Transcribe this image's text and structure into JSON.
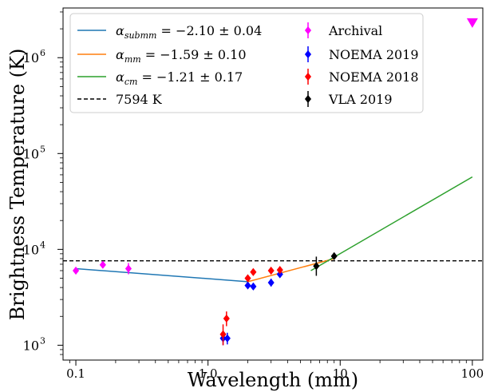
{
  "chart_data": {
    "type": "scatter",
    "xlabel": "Wavelength (mm)",
    "ylabel": "Brightness Temperature (K)",
    "xscale": "log",
    "yscale": "log",
    "xlim": [
      0.08,
      120
    ],
    "ylim": [
      700,
      3300000
    ],
    "x_ticks": [
      {
        "value": 0.1,
        "label": "0.1"
      },
      {
        "value": 1,
        "label": "1.0"
      },
      {
        "value": 10,
        "label": "10"
      },
      {
        "value": 100,
        "label": "100"
      }
    ],
    "y_ticks": [
      {
        "value": 1000,
        "base": "10",
        "exp": "3"
      },
      {
        "value": 10000,
        "base": "10",
        "exp": "4"
      },
      {
        "value": 100000,
        "base": "10",
        "exp": "5"
      },
      {
        "value": 1000000,
        "base": "10",
        "exp": "6"
      }
    ],
    "legend_position": "top",
    "fits": [
      {
        "name": "α_submm = −2.10 ± 0.04",
        "label_prefix": "α",
        "label_sub": "submm",
        "label_rest": " = −2.10 ± 0.04",
        "color": "#1f77b4",
        "x": [
          0.1,
          2.0
        ],
        "y": [
          6300,
          4600
        ]
      },
      {
        "name": "α_mm = −1.59 ± 0.10",
        "label_prefix": "α",
        "label_sub": "mm",
        "label_rest": " = −1.59 ± 0.10",
        "color": "#ff7f0e",
        "x": [
          2.0,
          9.0
        ],
        "y": [
          4600,
          8000
        ]
      },
      {
        "name": "α_cm = −1.21 ± 0.17",
        "label_prefix": "α",
        "label_sub": "cm",
        "label_rest": " = −1.21 ± 0.17",
        "color": "#2ca02c",
        "x": [
          6.0,
          100
        ],
        "y": [
          6000,
          57000
        ]
      }
    ],
    "hline": {
      "name": "7594 K",
      "value": 7594,
      "color": "#000000",
      "style": "dashed"
    },
    "series": [
      {
        "name": "Archival",
        "color": "#ff00ff",
        "points": [
          {
            "x": 0.1,
            "y": 6000,
            "ylo": 5750,
            "yhi": 6250
          },
          {
            "x": 0.16,
            "y": 6900,
            "ylo": 6500,
            "yhi": 7300
          },
          {
            "x": 0.25,
            "y": 6300,
            "ylo": 5500,
            "yhi": 7200
          }
        ]
      },
      {
        "name": "NOEMA 2019",
        "color": "#0000ff",
        "points": [
          {
            "x": 1.3,
            "y": 1180,
            "ylo": 1000,
            "yhi": 1380
          },
          {
            "x": 1.4,
            "y": 1180,
            "ylo": 1020,
            "yhi": 1350
          },
          {
            "x": 2.0,
            "y": 4200,
            "ylo": 3900,
            "yhi": 4500
          },
          {
            "x": 2.2,
            "y": 4100,
            "ylo": 3850,
            "yhi": 4350
          },
          {
            "x": 3.0,
            "y": 4500,
            "ylo": 4100,
            "yhi": 4950
          },
          {
            "x": 3.5,
            "y": 5500,
            "ylo": 5100,
            "yhi": 6000
          }
        ]
      },
      {
        "name": "NOEMA 2018",
        "color": "#ff0000",
        "points": [
          {
            "x": 1.3,
            "y": 1300,
            "ylo": 1000,
            "yhi": 1650
          },
          {
            "x": 1.38,
            "y": 1900,
            "ylo": 1580,
            "yhi": 2250
          },
          {
            "x": 2.0,
            "y": 5000,
            "ylo": 4600,
            "yhi": 5400
          },
          {
            "x": 2.2,
            "y": 5800,
            "ylo": 5500,
            "yhi": 6100
          },
          {
            "x": 3.0,
            "y": 6000,
            "ylo": 5700,
            "yhi": 6300
          },
          {
            "x": 3.5,
            "y": 6100,
            "ylo": 5750,
            "yhi": 6450
          }
        ]
      },
      {
        "name": "VLA 2019",
        "color": "#000000",
        "points": [
          {
            "x": 6.6,
            "y": 6700,
            "ylo": 5300,
            "yhi": 8400
          },
          {
            "x": 9.0,
            "y": 8500,
            "ylo": 8100,
            "yhi": 8900
          }
        ]
      }
    ],
    "upper_limit": {
      "x": 100,
      "y": 2300000,
      "color": "#ff00ff",
      "marker": "triangle-down"
    }
  }
}
